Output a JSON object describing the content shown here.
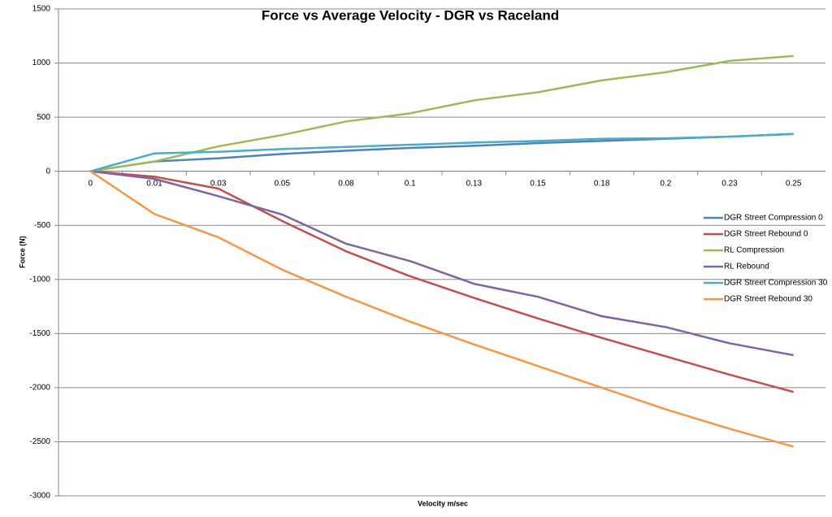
{
  "chart_data": {
    "type": "line",
    "title": "Force vs Average Velocity - DGR vs Raceland",
    "x_label": "Velocity m/sec",
    "y_label": "Force (N)",
    "categories": [
      "0",
      "0.01",
      "0.03",
      "0.05",
      "0.08",
      "0.1",
      "0.13",
      "0.15",
      "0.18",
      "0.2",
      "0.23",
      "0.25"
    ],
    "ylim": [
      -3000,
      1500
    ],
    "yticks": [
      -3000,
      -2500,
      -2000,
      -1500,
      -1000,
      -500,
      0,
      500,
      1000,
      1500
    ],
    "grid": true,
    "legend": "right",
    "series": [
      {
        "name": "DGR Street Compression 0",
        "color": "#4f81bd",
        "values": [
          0,
          90,
          120,
          160,
          190,
          215,
          235,
          260,
          280,
          300,
          320,
          345
        ]
      },
      {
        "name": "DGR Street Rebound 0",
        "color": "#c0504d",
        "values": [
          0,
          -50,
          -160,
          -460,
          -740,
          -970,
          -1170,
          -1360,
          -1540,
          -1710,
          -1880,
          -2040
        ]
      },
      {
        "name": "RL Compression",
        "color": "#9bbb59",
        "values": [
          0,
          90,
          230,
          335,
          460,
          535,
          655,
          730,
          840,
          915,
          1020,
          1065
        ]
      },
      {
        "name": "RL Rebound",
        "color": "#8064a2",
        "values": [
          0,
          -70,
          -230,
          -400,
          -670,
          -830,
          -1040,
          -1160,
          -1340,
          -1440,
          -1590,
          -1700
        ]
      },
      {
        "name": "DGR Street Compression 30",
        "color": "#4bacc6",
        "values": [
          0,
          165,
          180,
          205,
          225,
          245,
          265,
          280,
          300,
          305,
          320,
          345
        ]
      },
      {
        "name": "DGR Street Rebound 30",
        "color": "#f79646",
        "values": [
          0,
          -395,
          -610,
          -910,
          -1160,
          -1390,
          -1600,
          -1800,
          -2000,
          -2200,
          -2380,
          -2545
        ]
      }
    ]
  }
}
